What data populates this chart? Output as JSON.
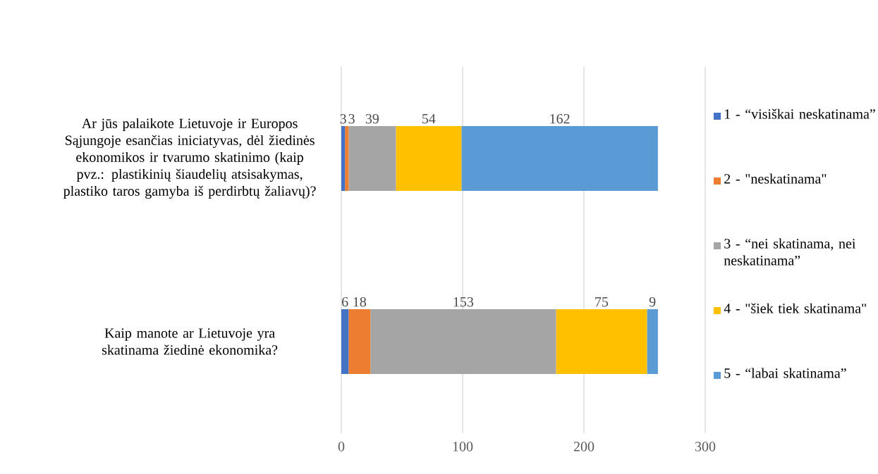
{
  "chart_data": {
    "type": "bar",
    "orientation": "horizontal",
    "stacked": true,
    "categories": [
      "Ar jūs palaikote Lietuvoje ir Europos Sąjungoje esančias iniciatyvas, dėl žiedinės ekonomikos ir tvarumo skatinimo (kaip pvz.: plastikinių šiaudelių atsisakymas, plastiko taros gamyba iš perdirbtų žaliavų)?",
      "Kaip manote ar Lietuvoje yra skatinama žiedinė ekonomika?"
    ],
    "series": [
      {
        "name": "1 - “visiškai neskatinama”",
        "color": "#4472c4",
        "values": [
          3,
          6
        ]
      },
      {
        "name": "2 - \"neskatinama\"",
        "color": "#ed7d31",
        "values": [
          3,
          18
        ]
      },
      {
        "name": "3 - “nei skatinama, nei neskatinama”",
        "color": "#a5a5a5",
        "values": [
          39,
          153
        ]
      },
      {
        "name": "4 - \"šiek tiek skatinama\"",
        "color": "#ffc000",
        "values": [
          54,
          75
        ]
      },
      {
        "name": "5 - “labai skatinama”",
        "color": "#5b9bd5",
        "values": [
          162,
          9
        ]
      }
    ],
    "xlim": [
      0,
      300
    ],
    "xticks": [
      0,
      100,
      200,
      300
    ],
    "grid": "x",
    "legend": "right",
    "data_labels": true
  }
}
